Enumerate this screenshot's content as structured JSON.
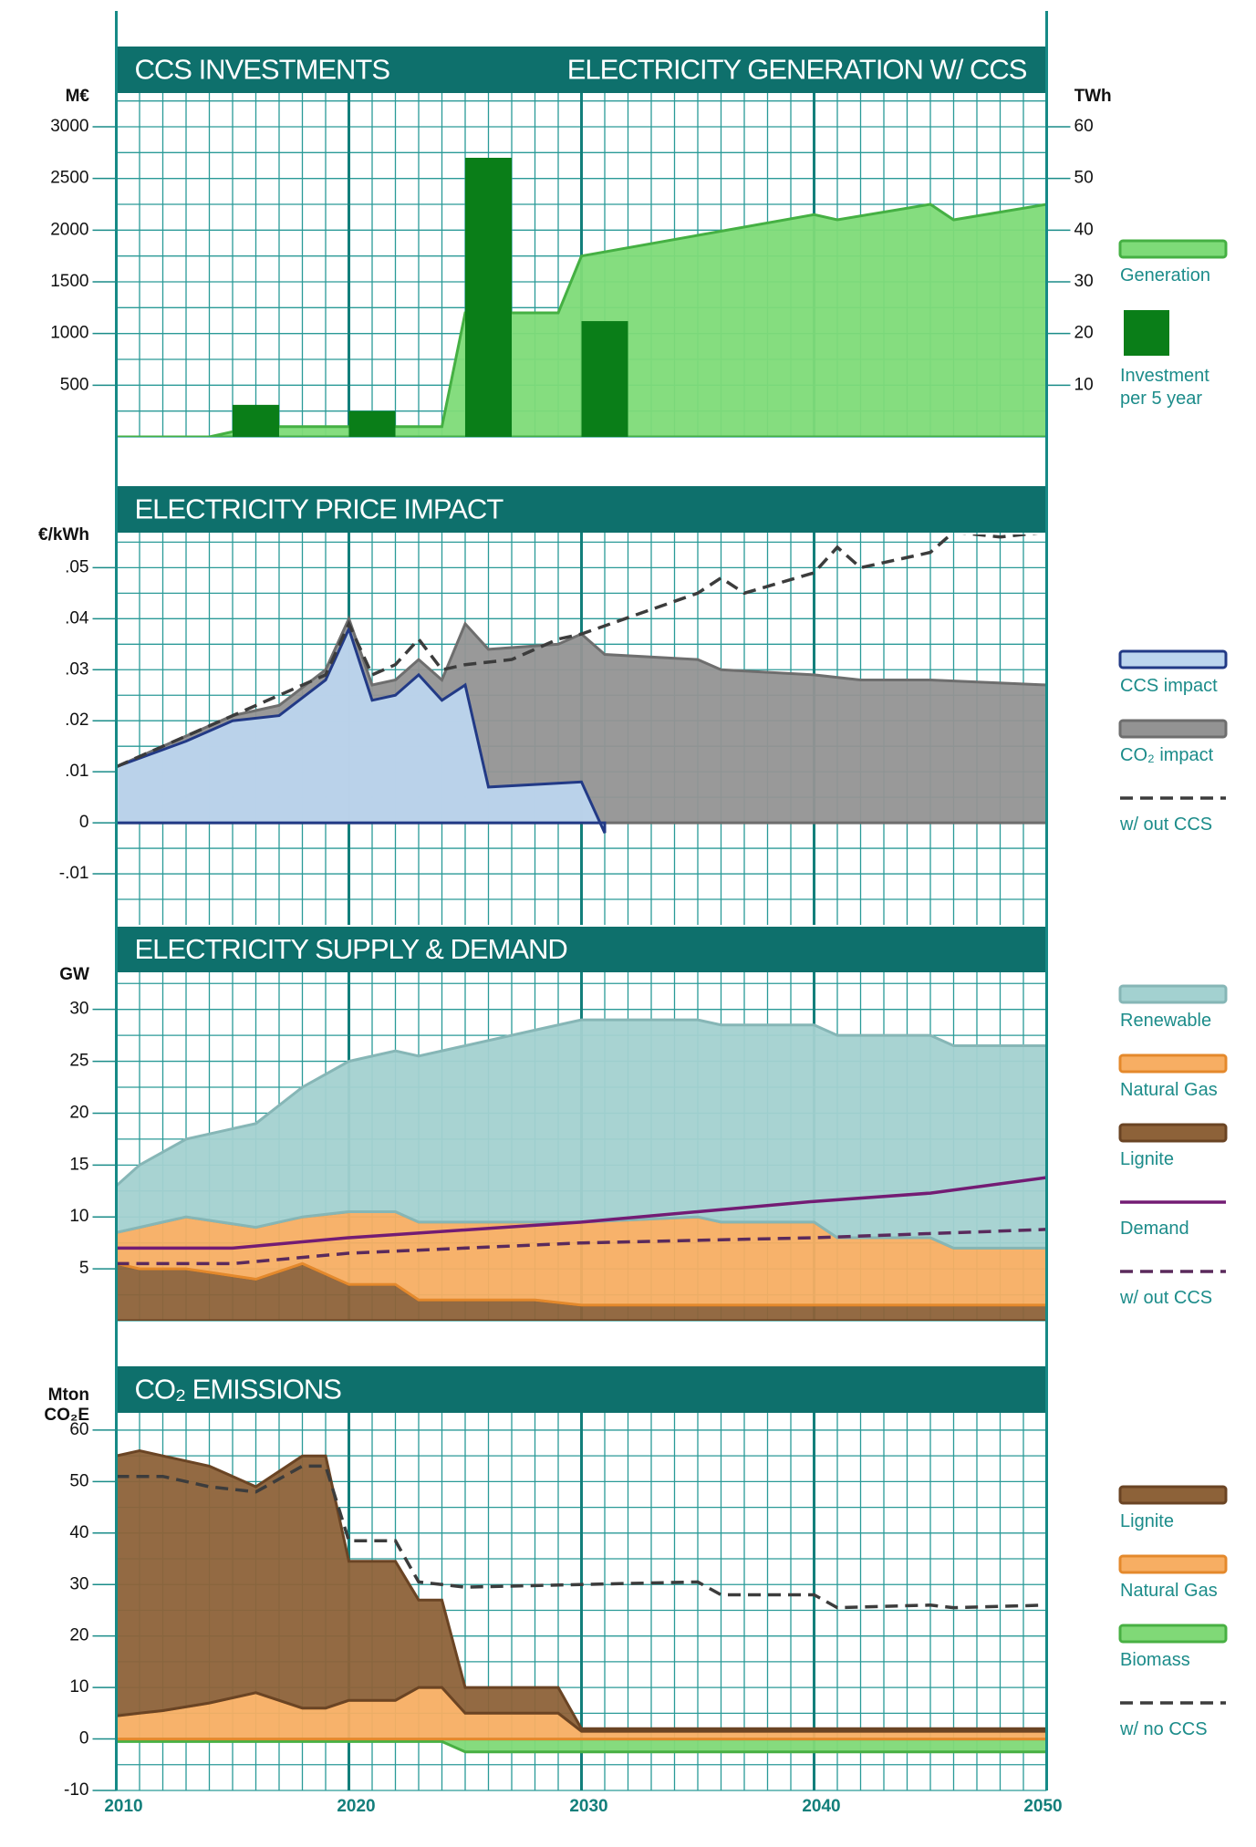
{
  "chart_data": [
    {
      "type": "combo",
      "title": "CCS INVESTMENTS",
      "title2": "ELECTRICITY GENERATION W/ CCS",
      "ylabel": "M€",
      "y2label": "TWh",
      "stacked": false,
      "xlim": [
        2010,
        2050
      ],
      "xticks": [
        2010,
        2020,
        2030,
        2040,
        2050
      ],
      "ylim": [
        0,
        3300
      ],
      "yticks": [
        500,
        1000,
        1500,
        2000,
        2500,
        3000
      ],
      "y2lim": [
        0,
        66
      ],
      "y2ticks": [
        10,
        20,
        30,
        40,
        50,
        60
      ],
      "series": [
        {
          "name": "Generation",
          "kind": "area",
          "axis": "y2",
          "color": "#7edb78",
          "stroke": "#45b043",
          "x": [
            2010,
            2014,
            2015,
            2016,
            2024,
            2025,
            2029,
            2030,
            2035,
            2040,
            2041,
            2045,
            2046,
            2050
          ],
          "values": [
            0,
            0,
            1,
            2,
            2,
            24,
            24,
            35,
            39,
            43,
            42,
            45,
            42,
            45
          ]
        },
        {
          "name": "Investment per 5 year",
          "kind": "bar",
          "color": "#0a7e18",
          "x": [
            2016,
            2021,
            2026,
            2031
          ],
          "values": [
            310,
            250,
            2700,
            1120
          ]
        }
      ]
    },
    {
      "type": "area",
      "title": "ELECTRICITY PRICE IMPACT",
      "ylabel": "€/kWh",
      "stacked": false,
      "xlim": [
        2010,
        2050
      ],
      "xticks": [
        2010,
        2020,
        2030,
        2040,
        2050
      ],
      "ylim": [
        -0.02,
        0.0565
      ],
      "yticks": [
        {
          "value": 0.05,
          "label": ".05"
        },
        {
          "value": 0.04,
          "label": ".04"
        },
        {
          "value": 0.03,
          "label": ".03"
        },
        {
          "value": 0.02,
          "label": ".02"
        },
        {
          "value": 0.01,
          "label": ".01"
        },
        0,
        {
          "value": -0.01,
          "label": "-.01"
        }
      ],
      "series": [
        {
          "name": "CCS impact",
          "kind": "area",
          "color": "#bcd5ee",
          "stroke": "#223a86",
          "x": [
            2010,
            2013,
            2015,
            2017,
            2019,
            2020,
            2021,
            2022,
            2023,
            2024,
            2025,
            2026,
            2030,
            2031
          ],
          "values": [
            0.011,
            0.016,
            0.02,
            0.021,
            0.028,
            0.038,
            0.024,
            0.025,
            0.029,
            0.024,
            0.027,
            0.007,
            0.008,
            -0.002
          ]
        },
        {
          "name": "CO₂ impact",
          "kind": "area",
          "color": "#939393",
          "stroke": "#6e6e6e",
          "x": [
            2010,
            2015,
            2017,
            2019,
            2020,
            2021,
            2022,
            2023,
            2024,
            2025,
            2026,
            2029,
            2030,
            2031,
            2035,
            2036,
            2040,
            2042,
            2045,
            2050
          ],
          "values": [
            0.011,
            0.021,
            0.023,
            0.03,
            0.04,
            0.027,
            0.028,
            0.032,
            0.028,
            0.039,
            0.034,
            0.035,
            0.037,
            0.033,
            0.032,
            0.03,
            0.029,
            0.028,
            0.028,
            0.027
          ]
        },
        {
          "name": "w/ out CCS",
          "kind": "line",
          "dash": true,
          "color": "#3c3c3c",
          "x": [
            2010,
            2019,
            2020,
            2021,
            2022,
            2023,
            2024,
            2025,
            2027,
            2029,
            2030,
            2035,
            2036,
            2037,
            2040,
            2041,
            2042,
            2045,
            2046,
            2048,
            2050
          ],
          "values": [
            0.011,
            0.029,
            0.039,
            0.029,
            0.031,
            0.036,
            0.03,
            0.031,
            0.032,
            0.036,
            0.037,
            0.045,
            0.048,
            0.045,
            0.049,
            0.054,
            0.05,
            0.053,
            0.057,
            0.056,
            0.057
          ]
        }
      ]
    },
    {
      "type": "area",
      "title": "ELECTRICITY SUPPLY & DEMAND",
      "ylabel": "GW",
      "stacked": true,
      "xlim": [
        2010,
        2050
      ],
      "xticks": [
        2010,
        2020,
        2030,
        2040,
        2050
      ],
      "ylim": [
        0,
        33.4
      ],
      "yticks": [
        5,
        10,
        15,
        20,
        25,
        30
      ],
      "series": [
        {
          "name": "Renewable",
          "kind": "area",
          "color": "#a3d1d0",
          "stroke": "#86b6b6",
          "x": [
            2010,
            2011,
            2013,
            2016,
            2018,
            2020,
            2022,
            2023,
            2025,
            2028,
            2030,
            2035,
            2036,
            2040,
            2041,
            2045,
            2046,
            2050
          ],
          "values": [
            4.5,
            6,
            7.5,
            10,
            12.5,
            14.5,
            15.5,
            16,
            17,
            18.5,
            19.5,
            19,
            19,
            19,
            19.5,
            19.5,
            19.5,
            19.5
          ]
        },
        {
          "name": "Natural Gas",
          "kind": "area",
          "color": "#f7ae63",
          "stroke": "#e4892c",
          "x": [
            2010,
            2011,
            2013,
            2016,
            2018,
            2020,
            2022,
            2023,
            2025,
            2028,
            2030,
            2035,
            2036,
            2040,
            2041,
            2045,
            2046,
            2050
          ],
          "values": [
            3,
            4,
            5,
            5,
            4.5,
            7,
            7,
            7.5,
            7.5,
            7.5,
            8,
            8.5,
            8,
            8,
            6.5,
            6.5,
            5.5,
            5.5
          ]
        },
        {
          "name": "Lignite",
          "kind": "area",
          "color": "#8d6239",
          "stroke": "#6a4424",
          "x": [
            2010,
            2011,
            2013,
            2016,
            2018,
            2020,
            2022,
            2023,
            2025,
            2028,
            2030,
            2035,
            2036,
            2040,
            2041,
            2045,
            2046,
            2050
          ],
          "values": [
            5.5,
            5,
            5,
            4,
            5.5,
            3.5,
            3.5,
            2,
            2,
            2,
            1.5,
            1.5,
            1.5,
            1.5,
            1.5,
            1.5,
            1.5,
            1.5
          ]
        },
        {
          "name": "Demand",
          "kind": "line",
          "color": "#731c74",
          "x": [
            2010,
            2015,
            2020,
            2030,
            2035,
            2040,
            2045,
            2050
          ],
          "values": [
            7,
            7,
            8,
            9.5,
            10.5,
            11.5,
            12.3,
            13.8
          ]
        },
        {
          "name": "w/ out CCS",
          "kind": "line",
          "dash": true,
          "color": "#5a2a5c",
          "x": [
            2010,
            2015,
            2020,
            2030,
            2040,
            2050
          ],
          "values": [
            5.5,
            5.5,
            6.5,
            7.5,
            8,
            8.8
          ]
        }
      ]
    },
    {
      "type": "area",
      "title": "CO₂ EMISSIONS",
      "ylabel": "Mton CO₂E",
      "stacked": true,
      "xlim": [
        2010,
        2050
      ],
      "xticks": [
        2010,
        2020,
        2030,
        2040,
        2050
      ],
      "ylim": [
        -10,
        63
      ],
      "yticks": [
        -10,
        0,
        10,
        20,
        30,
        40,
        50,
        60
      ],
      "series": [
        {
          "name": "Lignite",
          "kind": "area",
          "color": "#8d6239",
          "stroke": "#6a4424",
          "x": [
            2010,
            2011,
            2012,
            2014,
            2016,
            2018,
            2019,
            2020,
            2022,
            2023,
            2024,
            2025,
            2029,
            2030,
            2050
          ],
          "values": [
            50.5,
            51,
            49.5,
            46,
            40,
            49,
            49,
            27,
            27,
            17,
            17,
            5,
            5,
            0.5,
            0.5
          ]
        },
        {
          "name": "Natural Gas",
          "kind": "area",
          "color": "#f7ae63",
          "stroke": "#e4892c",
          "x": [
            2010,
            2011,
            2012,
            2014,
            2016,
            2018,
            2019,
            2020,
            2022,
            2023,
            2024,
            2025,
            2029,
            2030,
            2050
          ],
          "values": [
            4.5,
            5,
            5.5,
            7,
            9,
            6,
            6,
            7.5,
            7.5,
            10,
            10,
            5,
            5,
            1.5,
            1.5
          ]
        },
        {
          "name": "Biomass",
          "kind": "area",
          "color": "#80d977",
          "stroke": "#48b043",
          "x": [
            2010,
            2024,
            2025,
            2050
          ],
          "values": [
            -0.5,
            -0.5,
            -2.5,
            -2.5
          ]
        },
        {
          "name": "w/ no CCS",
          "kind": "line",
          "dash": true,
          "color": "#3c3c3c",
          "x": [
            2010,
            2012,
            2014,
            2016,
            2018,
            2019,
            2020,
            2022,
            2023,
            2025,
            2030,
            2035,
            2036,
            2040,
            2041,
            2045,
            2046,
            2050
          ],
          "values": [
            51,
            51,
            49,
            48,
            53,
            53,
            38.5,
            38.5,
            30.5,
            29.5,
            30,
            30.5,
            28,
            28,
            25.5,
            26,
            25.5,
            26
          ]
        }
      ]
    }
  ]
}
